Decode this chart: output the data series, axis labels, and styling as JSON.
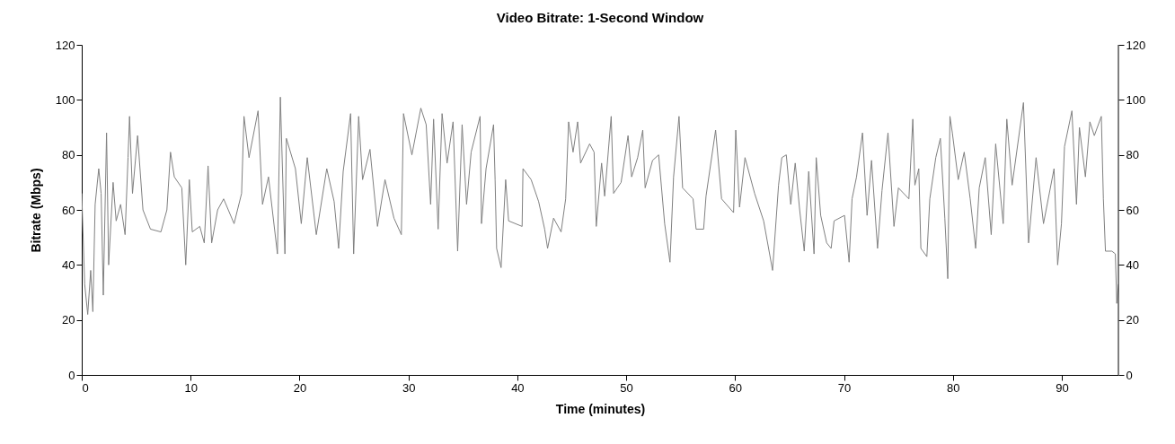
{
  "chart_data": {
    "type": "line",
    "title": "Video Bitrate: 1-Second Window",
    "xlabel": "Time (minutes)",
    "ylabel": "Bitrate (Mbps)",
    "x": [
      0,
      0.27,
      0.55,
      0.82,
      1.02,
      1.23,
      1.56,
      1.78,
      1.98,
      2.28,
      2.47,
      2.88,
      3.16,
      3.57,
      3.98,
      4.25,
      4.39,
      4.66,
      5.13,
      5.62,
      6.31,
      7.27,
      7.82,
      8.15,
      8.5,
      9.19,
      9.55,
      9.88,
      10.15,
      10.84,
      11.25,
      11.6,
      11.93,
      12.48,
      13.03,
      13.99,
      14.68,
      14.9,
      15.36,
      16.19,
      16.6,
      17.15,
      17.97,
      18.24,
      18.66,
      18.79,
      19.62,
      20.16,
      20.71,
      21.54,
      22.5,
      23.18,
      23.59,
      24.01,
      24.69,
      24.97,
      25.43,
      25.79,
      26.47,
      27.16,
      27.85,
      28.67,
      29.35,
      29.55,
      30.32,
      31.14,
      31.63,
      32.04,
      32.31,
      32.73,
      33.09,
      33.55,
      34.1,
      34.52,
      34.93,
      35.34,
      35.76,
      36.58,
      36.71,
      37.13,
      37.82,
      37.96,
      38.1,
      38.51,
      38.93,
      39.2,
      40.44,
      40.52,
      41.27,
      41.96,
      42.51,
      42.78,
      43.33,
      44.02,
      44.44,
      44.71,
      45.12,
      45.54,
      45.81,
      46.64,
      47.05,
      47.25,
      47.74,
      48.02,
      48.62,
      48.84,
      49.53,
      50.17,
      50.5,
      51.05,
      51.52,
      51.74,
      52.42,
      52.98,
      53.53,
      54.02,
      54.35,
      54.85,
      55.18,
      56.14,
      56.42,
      57.11,
      57.33,
      58.21,
      58.76,
      59.86,
      60.06,
      60.41,
      60.91,
      61.79,
      62.62,
      63.44,
      63.99,
      64.29,
      64.7,
      65.11,
      65.52,
      65.93,
      66.35,
      66.76,
      67.25,
      67.45,
      67.86,
      68.41,
      68.82,
      69.09,
      70.05,
      70.47,
      70.74,
      71.15,
      71.7,
      72.12,
      72.53,
      73.08,
      73.49,
      74.04,
      74.59,
      75.0,
      75.96,
      76.32,
      76.51,
      76.87,
      77.06,
      77.61,
      77.88,
      78.43,
      78.85,
      79.26,
      79.53,
      79.73,
      79.95,
      80.49,
      81.04,
      81.59,
      82.09,
      82.42,
      82.97,
      83.52,
      83.93,
      84.62,
      84.95,
      85.44,
      86.48,
      86.95,
      87.64,
      88.32,
      89.29,
      89.62,
      89.97,
      90.25,
      90.93,
      91.35,
      91.62,
      92.17,
      92.58,
      92.99,
      93.63,
      93.82,
      94.01,
      94.6,
      94.92,
      95.05,
      95.2
    ],
    "series": [
      {
        "color": "#808080",
        "values": [
          66,
          33,
          22,
          38,
          23,
          62,
          75,
          66,
          29,
          88,
          40,
          70,
          56,
          62,
          51,
          79,
          94,
          66,
          87,
          60,
          53,
          52,
          60,
          81,
          72,
          68,
          40,
          71,
          52,
          54,
          48,
          76,
          48,
          60,
          64,
          55,
          66,
          94,
          79,
          96,
          62,
          72,
          44,
          101,
          44,
          86,
          75,
          55,
          79,
          51,
          75,
          63,
          46,
          74,
          95,
          44,
          94,
          71,
          82,
          54,
          71,
          57,
          51,
          95,
          80,
          97,
          91,
          62,
          93,
          53,
          95,
          77,
          92,
          45,
          91,
          62,
          81,
          94,
          55,
          75,
          91,
          71,
          46,
          39,
          71,
          56,
          54,
          75,
          71,
          63,
          53,
          46,
          57,
          52,
          64,
          92,
          81,
          92,
          77,
          84,
          81,
          54,
          77,
          65,
          94,
          66,
          70,
          87,
          72,
          79,
          89,
          68,
          78,
          80,
          55,
          41,
          72,
          94,
          68,
          64,
          53,
          53,
          65,
          89,
          64,
          59,
          89,
          61,
          79,
          66,
          56,
          38,
          69,
          79,
          80,
          62,
          77,
          60,
          45,
          74,
          44,
          79,
          58,
          48,
          46,
          56,
          58,
          41,
          64,
          72,
          88,
          58,
          78,
          46,
          67,
          88,
          54,
          68,
          64,
          93,
          69,
          75,
          46,
          43,
          64,
          79,
          86,
          57,
          35,
          94,
          88,
          71,
          81,
          64,
          46,
          68,
          79,
          51,
          84,
          55,
          93,
          69,
          99,
          48,
          79,
          55,
          75,
          40,
          55,
          83,
          96,
          62,
          90,
          72,
          92,
          87,
          94,
          64,
          45,
          45,
          44,
          26,
          33
        ]
      }
    ],
    "xlim": [
      0,
      95.2
    ],
    "xticks": [
      0,
      10,
      20,
      30,
      40,
      50,
      60,
      70,
      80,
      90
    ],
    "ylim": [
      0,
      120
    ],
    "yticks": [
      0,
      20,
      40,
      60,
      80,
      100,
      120
    ],
    "y2lim": [
      0,
      120
    ],
    "y2ticks": [
      0,
      20,
      40,
      60,
      80,
      100,
      120
    ]
  }
}
